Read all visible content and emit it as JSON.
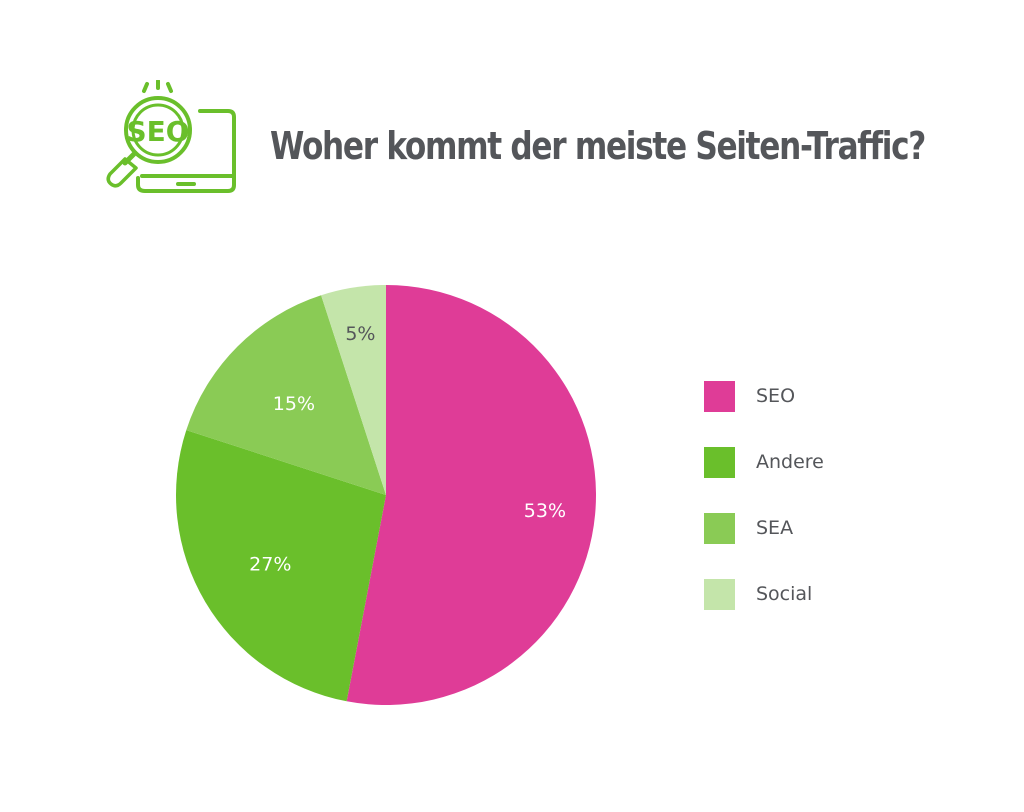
{
  "header": {
    "logo_text": "SEO",
    "title": "Woher kommt der meiste Seiten-Traffic?"
  },
  "colors": {
    "title": "#54565a",
    "logo": "#6abf2b",
    "label": "#ffffff"
  },
  "icons": {
    "logo": "seo-magnifier-laptop-icon"
  },
  "chart_data": {
    "type": "pie",
    "title": "Woher kommt der meiste Seiten-Traffic?",
    "start_angle": "12 o'clock",
    "direction": "clockwise",
    "legend_position": "right",
    "slices": [
      {
        "label": "SEO",
        "value": 53,
        "value_label": "53%",
        "color": "#df3c97"
      },
      {
        "label": "Andere",
        "value": 27,
        "value_label": "27%",
        "color": "#6abf2b"
      },
      {
        "label": "SEA",
        "value": 15,
        "value_label": "15%",
        "color": "#8acb55"
      },
      {
        "label": "Social",
        "value": 5,
        "value_label": "5%",
        "color": "#c4e5aa"
      }
    ]
  }
}
